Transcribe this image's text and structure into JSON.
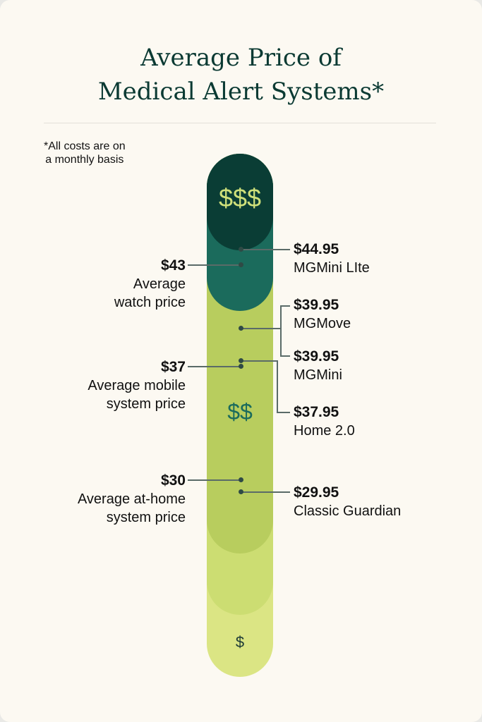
{
  "title_line1": "Average Price of",
  "title_line2": "Medical Alert Systems*",
  "footnote_line1": "*All costs are on",
  "footnote_line2": "a monthly basis",
  "tiers": {
    "high": "$$$",
    "mid": "$$",
    "low": "$"
  },
  "colors": {
    "tier_dark": "#0a3d35",
    "tier_teal": "#1b6b5c",
    "tier_green": "#b8cd5e",
    "tier_light": "#ccdd72",
    "tier_lightest": "#dbe584"
  },
  "chart_data": {
    "type": "table",
    "title": "Average Price of Medical Alert Systems*",
    "averages": [
      {
        "price": "$43",
        "label_1": "Average",
        "label_2": "watch price",
        "value": 43
      },
      {
        "price": "$37",
        "label_1": "Average mobile",
        "label_2": "system price",
        "value": 37
      },
      {
        "price": "$30",
        "label_1": "Average at-home",
        "label_2": "system price",
        "value": 30
      }
    ],
    "products": [
      {
        "price": "$44.95",
        "name": "MGMini LIte",
        "value": 44.95
      },
      {
        "price": "$39.95",
        "name": "MGMove",
        "value": 39.95
      },
      {
        "price": "$39.95",
        "name": "MGMini",
        "value": 39.95
      },
      {
        "price": "$37.95",
        "name": "Home 2.0",
        "value": 37.95
      },
      {
        "price": "$29.95",
        "name": "Classic Guardian",
        "value": 29.95
      }
    ]
  }
}
